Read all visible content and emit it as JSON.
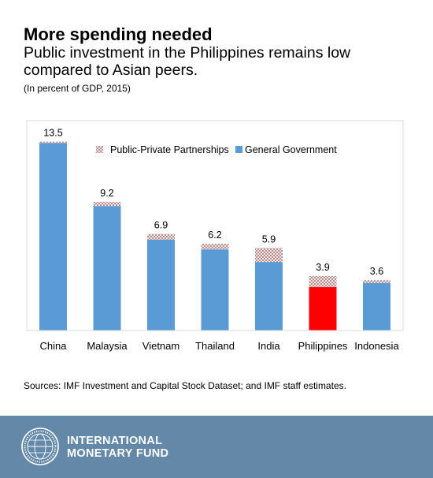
{
  "header": {
    "title": "More spending needed",
    "subtitle": "Public investment in the Philippines remains low compared to Asian peers.",
    "units": "(In percent of GDP, 2015)"
  },
  "chart_data": {
    "type": "bar",
    "stacked": true,
    "categories": [
      "China",
      "Malaysia",
      "Vietnam",
      "Thailand",
      "India",
      "Philippines",
      "Indonesia"
    ],
    "totals": [
      "13.5",
      "9.2",
      "6.9",
      "6.2",
      "5.9",
      "3.9",
      "3.6"
    ],
    "series": [
      {
        "name": "General Government",
        "values": [
          13.4,
          8.9,
          6.5,
          5.8,
          4.9,
          3.1,
          3.4
        ],
        "color": "#5b9bd5"
      },
      {
        "name": "Public-Private Partnerships",
        "values": [
          0.1,
          0.3,
          0.4,
          0.4,
          1.0,
          0.8,
          0.2
        ],
        "pattern": "crosshatch"
      }
    ],
    "highlight": {
      "category": "Philippines",
      "color": "#ff0000"
    },
    "ylim": [
      0,
      15
    ],
    "legend": "top-right",
    "grid": false
  },
  "source": "Sources: IMF Investment and Capital Stock Dataset; and IMF staff estimates.",
  "footer": {
    "org_line1": "INTERNATIONAL",
    "org_line2": "MONETARY FUND",
    "logo_icon": "imf-seal-icon"
  }
}
